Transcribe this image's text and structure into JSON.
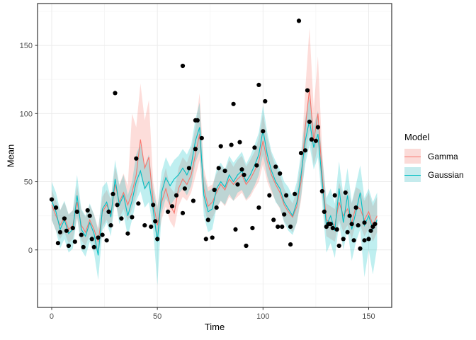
{
  "figure": {
    "background": "#ffffff"
  },
  "theme": {
    "panel_border": "#333333",
    "grid_major": "#ebebeb",
    "grid_minor": "#f5f5f5",
    "tick_color": "#333333",
    "tick_label_color": "#4d4d4d",
    "point_color": "#000000"
  },
  "axes": {
    "x_title": "Time",
    "y_title": "Mean",
    "x_major": [
      0,
      50,
      100,
      150
    ],
    "x_minor": [
      25,
      75,
      125
    ],
    "y_major": [
      0,
      50,
      100,
      150
    ],
    "y_minor": [
      -25,
      25,
      75,
      125,
      175
    ]
  },
  "legend": {
    "title": "Model",
    "items": [
      {
        "label": "Gamma",
        "line": "#f8766d",
        "fill": "#fbdbd8"
      },
      {
        "label": "Gaussian",
        "line": "#00bfc4",
        "fill": "#c5ebed"
      }
    ]
  },
  "chart_data": {
    "type": "line",
    "subtype": "ribbon+scatter",
    "title": "",
    "xlabel": "Time",
    "ylabel": "Mean",
    "xlim": [
      -6.7,
      160.9
    ],
    "ylim": [
      -42.2,
      180.7
    ],
    "grid": "on",
    "legend_position": "right",
    "legend_title": "Model",
    "x": [
      0,
      2,
      4,
      6,
      8,
      10,
      12,
      14,
      16,
      18,
      20,
      22,
      24,
      26,
      28,
      30,
      32,
      34,
      36,
      38,
      40,
      42,
      44,
      46,
      48,
      50,
      52,
      54,
      56,
      58,
      60,
      62,
      64,
      66,
      68,
      70,
      72,
      74,
      76,
      78,
      80,
      82,
      84,
      86,
      88,
      90,
      92,
      94,
      96,
      98,
      100,
      102,
      104,
      106,
      108,
      110,
      112,
      114,
      116,
      118,
      120,
      122,
      124,
      126,
      128,
      130,
      132,
      134,
      136,
      138,
      140,
      142,
      144,
      146,
      148,
      150,
      152,
      154
    ],
    "series": [
      {
        "name": "Gamma",
        "color": "#f8766d",
        "fill": "rgba(248,118,109,0.25)",
        "mean": [
          33,
          25,
          18,
          24,
          15,
          18,
          35,
          18,
          13,
          22,
          15,
          6,
          28,
          33,
          26,
          48,
          35,
          42,
          33,
          42,
          55,
          81,
          60,
          68,
          35,
          18,
          35,
          45,
          33,
          27,
          45,
          52,
          48,
          55,
          70,
          85,
          45,
          32,
          35,
          42,
          48,
          44,
          52,
          48,
          52,
          55,
          48,
          52,
          58,
          65,
          80,
          65,
          55,
          48,
          42,
          33,
          28,
          24,
          32,
          50,
          90,
          118,
          80,
          100,
          55,
          22,
          20,
          18,
          35,
          25,
          30,
          20,
          32,
          30,
          22,
          28,
          18,
          25
        ],
        "lower": [
          22,
          14,
          8,
          13,
          5,
          8,
          23,
          7,
          3,
          11,
          5,
          -4,
          17,
          22,
          15,
          35,
          23,
          30,
          21,
          30,
          40,
          55,
          44,
          48,
          22,
          6,
          22,
          32,
          21,
          16,
          32,
          39,
          36,
          42,
          54,
          66,
          32,
          20,
          23,
          30,
          36,
          32,
          39,
          36,
          39,
          42,
          36,
          39,
          45,
          50,
          63,
          50,
          42,
          36,
          30,
          21,
          17,
          13,
          20,
          36,
          68,
          88,
          62,
          76,
          40,
          10,
          8,
          6,
          22,
          13,
          18,
          8,
          20,
          18,
          10,
          16,
          6,
          13
        ],
        "upper": [
          44,
          36,
          29,
          35,
          26,
          29,
          47,
          29,
          24,
          33,
          26,
          16,
          39,
          44,
          37,
          61,
          48,
          56,
          47,
          100,
          90,
          122,
          95,
          110,
          50,
          32,
          48,
          60,
          46,
          42,
          60,
          68,
          64,
          73,
          90,
          115,
          60,
          46,
          48,
          56,
          62,
          57,
          66,
          61,
          66,
          69,
          61,
          66,
          72,
          82,
          100,
          82,
          70,
          61,
          55,
          45,
          39,
          34,
          44,
          66,
          118,
          163,
          104,
          142,
          72,
          34,
          32,
          30,
          50,
          39,
          45,
          34,
          46,
          44,
          36,
          42,
          32,
          39
        ]
      },
      {
        "name": "Gaussian",
        "color": "#00bfc4",
        "fill": "rgba(0,191,196,0.25)",
        "mean": [
          36,
          28,
          15,
          22,
          12,
          15,
          40,
          15,
          10,
          20,
          12,
          -4,
          30,
          35,
          24,
          52,
          33,
          40,
          25,
          36,
          50,
          58,
          45,
          50,
          30,
          6,
          42,
          53,
          47,
          52,
          55,
          60,
          55,
          62,
          80,
          90,
          40,
          28,
          30,
          45,
          50,
          46,
          55,
          50,
          55,
          58,
          50,
          55,
          62,
          70,
          88,
          70,
          58,
          50,
          45,
          35,
          30,
          25,
          35,
          55,
          80,
          95,
          75,
          85,
          50,
          18,
          25,
          14,
          45,
          20,
          40,
          15,
          28,
          42,
          18,
          25,
          15,
          22
        ],
        "lower": [
          22,
          14,
          1,
          8,
          -2,
          1,
          25,
          0,
          -5,
          6,
          -2,
          -22,
          14,
          20,
          10,
          38,
          19,
          26,
          10,
          22,
          36,
          43,
          31,
          35,
          15,
          -26,
          27,
          38,
          32,
          37,
          41,
          45,
          40,
          47,
          64,
          72,
          25,
          13,
          15,
          31,
          36,
          33,
          41,
          36,
          42,
          44,
          37,
          41,
          47,
          55,
          70,
          54,
          44,
          35,
          31,
          20,
          14,
          11,
          20,
          39,
          63,
          77,
          59,
          68,
          35,
          -2,
          5,
          -6,
          20,
          0,
          15,
          -8,
          6,
          15,
          -20,
          0,
          -18,
          2
        ],
        "upper": [
          50,
          42,
          29,
          36,
          26,
          29,
          55,
          30,
          25,
          34,
          26,
          14,
          46,
          50,
          38,
          66,
          47,
          55,
          40,
          50,
          70,
          78,
          62,
          70,
          45,
          30,
          57,
          68,
          61,
          66,
          69,
          74,
          70,
          77,
          96,
          108,
          55,
          43,
          45,
          59,
          64,
          59,
          69,
          64,
          68,
          72,
          63,
          69,
          77,
          86,
          106,
          86,
          72,
          65,
          59,
          50,
          46,
          39,
          50,
          71,
          97,
          112,
          91,
          102,
          68,
          38,
          45,
          34,
          65,
          40,
          60,
          35,
          48,
          62,
          38,
          45,
          35,
          42
        ]
      }
    ],
    "points": [
      [
        0,
        37
      ],
      [
        2,
        31
      ],
      [
        3,
        5
      ],
      [
        4,
        13
      ],
      [
        6,
        23
      ],
      [
        7,
        14
      ],
      [
        8,
        3
      ],
      [
        10,
        16
      ],
      [
        11,
        6
      ],
      [
        12,
        28
      ],
      [
        14,
        11
      ],
      [
        15,
        2
      ],
      [
        17,
        29
      ],
      [
        18,
        25
      ],
      [
        19,
        8
      ],
      [
        20,
        2
      ],
      [
        22,
        9
      ],
      [
        24,
        11
      ],
      [
        26,
        7
      ],
      [
        27,
        28
      ],
      [
        28,
        18
      ],
      [
        29,
        41
      ],
      [
        30,
        115
      ],
      [
        31,
        33
      ],
      [
        33,
        23
      ],
      [
        36,
        12
      ],
      [
        38,
        24
      ],
      [
        40,
        67
      ],
      [
        41,
        34
      ],
      [
        44,
        18
      ],
      [
        47,
        17
      ],
      [
        48,
        33
      ],
      [
        49,
        21
      ],
      [
        50,
        8
      ],
      [
        55,
        28
      ],
      [
        57,
        32
      ],
      [
        59,
        40
      ],
      [
        62,
        27
      ],
      [
        62,
        135
      ],
      [
        63,
        45
      ],
      [
        65,
        60
      ],
      [
        67,
        36
      ],
      [
        68,
        74
      ],
      [
        68,
        95
      ],
      [
        69,
        95
      ],
      [
        71,
        82
      ],
      [
        73,
        8
      ],
      [
        74,
        22
      ],
      [
        76,
        9
      ],
      [
        77,
        44
      ],
      [
        78,
        31
      ],
      [
        79,
        60
      ],
      [
        80,
        76
      ],
      [
        82,
        58
      ],
      [
        85,
        77
      ],
      [
        86,
        107
      ],
      [
        87,
        15
      ],
      [
        88,
        48
      ],
      [
        89,
        79
      ],
      [
        90,
        59
      ],
      [
        91,
        55
      ],
      [
        92,
        3
      ],
      [
        95,
        16
      ],
      [
        96,
        75
      ],
      [
        97,
        62
      ],
      [
        98,
        31
      ],
      [
        98,
        121
      ],
      [
        100,
        87
      ],
      [
        101,
        109
      ],
      [
        103,
        40
      ],
      [
        105,
        22
      ],
      [
        106,
        61
      ],
      [
        107,
        17
      ],
      [
        108,
        56
      ],
      [
        109,
        17
      ],
      [
        110,
        26
      ],
      [
        111,
        40
      ],
      [
        113,
        17
      ],
      [
        113,
        4
      ],
      [
        115,
        41
      ],
      [
        117,
        168
      ],
      [
        118,
        71
      ],
      [
        120,
        73
      ],
      [
        121,
        117
      ],
      [
        122,
        94
      ],
      [
        123,
        81
      ],
      [
        125,
        80
      ],
      [
        126,
        90
      ],
      [
        128,
        43
      ],
      [
        129,
        28
      ],
      [
        130,
        17
      ],
      [
        131,
        19
      ],
      [
        132,
        19
      ],
      [
        133,
        16
      ],
      [
        134,
        40
      ],
      [
        135,
        15
      ],
      [
        136,
        3
      ],
      [
        138,
        8
      ],
      [
        139,
        42
      ],
      [
        140,
        13
      ],
      [
        141,
        25
      ],
      [
        142,
        19
      ],
      [
        143,
        7
      ],
      [
        144,
        31
      ],
      [
        145,
        18
      ],
      [
        146,
        1
      ],
      [
        148,
        7
      ],
      [
        148,
        20
      ],
      [
        150,
        8
      ],
      [
        151,
        14
      ],
      [
        152,
        17
      ],
      [
        153,
        19
      ]
    ]
  }
}
